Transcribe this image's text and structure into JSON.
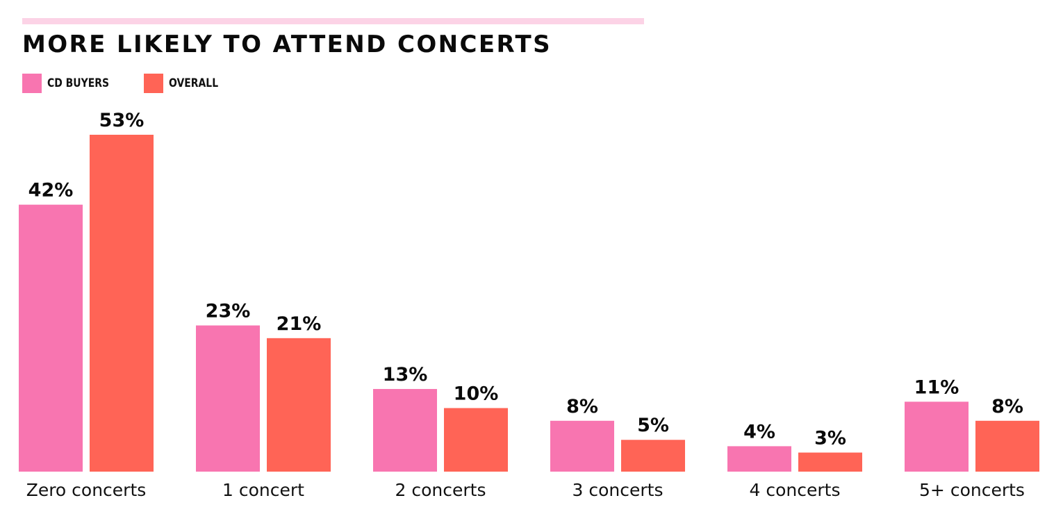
{
  "chart_data": {
    "type": "bar",
    "title": "MORE LIKELY TO ATTEND CONCERTS",
    "xlabel": "",
    "ylabel": "",
    "categories": [
      "Zero concerts",
      "1 concert",
      "2 concerts",
      "3 concerts",
      "4 concerts",
      "5+ concerts"
    ],
    "series": [
      {
        "name": "CD BUYERS",
        "color": "#f875b0",
        "values": [
          42,
          23,
          13,
          8,
          4,
          11
        ],
        "labels": [
          "42%",
          "23%",
          "13%",
          "8%",
          "4%",
          "11%"
        ]
      },
      {
        "name": "OVERALL",
        "color": "#ff6456",
        "values": [
          53,
          21,
          10,
          5,
          3,
          8
        ],
        "labels": [
          "53%",
          "21%",
          "10%",
          "5%",
          "3%",
          "8%"
        ]
      }
    ],
    "ylim": [
      0,
      53
    ],
    "grid": false,
    "legend_position": "top-left"
  },
  "colors": {
    "accent_bar": "#fcd3e6",
    "cd_buyers": "#f875b0",
    "overall": "#ff6456"
  }
}
